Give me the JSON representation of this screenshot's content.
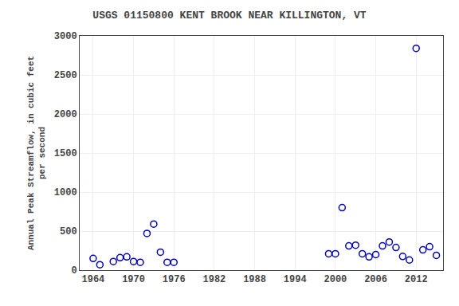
{
  "chart_data": {
    "type": "scatter",
    "title": "USGS 01150800 KENT BROOK NEAR KILLINGTON, VT",
    "ylabel": "Annual Peak Streamflow, in cubic feet\nper second",
    "x": [
      1964,
      1965,
      1967,
      1968,
      1969,
      1970,
      1971,
      1972,
      1973,
      1974,
      1975,
      1976,
      1999,
      2000,
      2001,
      2002,
      2003,
      2004,
      2005,
      2006,
      2007,
      2008,
      2009,
      2010,
      2011,
      2012,
      2013,
      2014,
      2015
    ],
    "values": [
      150,
      70,
      110,
      160,
      170,
      110,
      100,
      470,
      590,
      230,
      100,
      100,
      210,
      210,
      800,
      310,
      320,
      210,
      170,
      200,
      310,
      360,
      290,
      175,
      130,
      2840,
      260,
      300,
      190
    ],
    "color": "#0000BB",
    "marker": "circle-open",
    "xlim": [
      1962,
      2016
    ],
    "ylim": [
      0,
      3000
    ],
    "xticks": [
      1964,
      1970,
      1976,
      1982,
      1988,
      1994,
      2000,
      2006,
      2012
    ],
    "yticks": [
      0,
      500,
      1000,
      1500,
      2000,
      2500,
      3000
    ],
    "grid": true
  }
}
